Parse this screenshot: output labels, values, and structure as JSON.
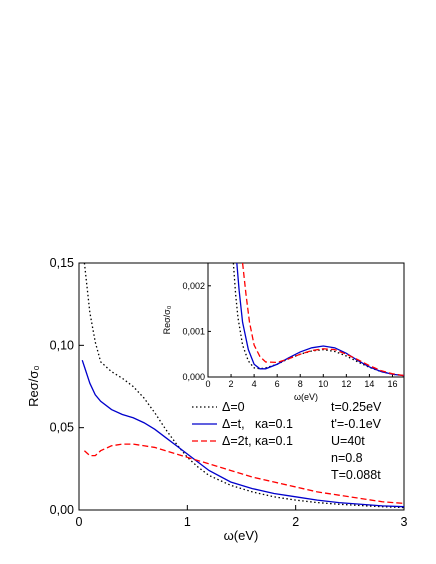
{
  "chart_data": [
    {
      "type": "line",
      "title": "",
      "xlabel": "ω(eV)",
      "ylabel": "Reσ/σ₀",
      "xlim": [
        0,
        3
      ],
      "ylim": [
        0,
        0.15
      ],
      "x_ticks": [
        "0",
        "1",
        "2",
        "3"
      ],
      "y_ticks": [
        "0,00",
        "0,05",
        "0,10",
        "0,15"
      ],
      "grid": false,
      "legend_position": "bottom-right",
      "series": [
        {
          "name": "Δ=0",
          "color": "#000000",
          "dash": "dotted",
          "x": [
            0.05,
            0.1,
            0.15,
            0.2,
            0.3,
            0.4,
            0.5,
            0.6,
            0.7,
            0.8,
            0.9,
            1.0,
            1.1,
            1.2,
            1.4,
            1.6,
            1.8,
            2.0,
            2.2,
            2.4,
            2.6,
            2.8,
            3.0
          ],
          "y": [
            0.15,
            0.12,
            0.102,
            0.09,
            0.084,
            0.08,
            0.075,
            0.068,
            0.059,
            0.049,
            0.04,
            0.032,
            0.026,
            0.021,
            0.015,
            0.011,
            0.008,
            0.006,
            0.0045,
            0.0035,
            0.0027,
            0.002,
            0.0015
          ]
        },
        {
          "name": "Δ=t,   κa=0.1",
          "color": "#0000cc",
          "dash": "solid",
          "x": [
            0.03,
            0.05,
            0.1,
            0.15,
            0.2,
            0.3,
            0.4,
            0.5,
            0.6,
            0.7,
            0.8,
            0.9,
            1.0,
            1.1,
            1.2,
            1.4,
            1.6,
            1.8,
            2.0,
            2.2,
            2.4,
            2.6,
            2.8,
            3.0
          ],
          "y": [
            0.091,
            0.087,
            0.077,
            0.07,
            0.066,
            0.061,
            0.058,
            0.056,
            0.053,
            0.049,
            0.044,
            0.039,
            0.034,
            0.029,
            0.024,
            0.017,
            0.013,
            0.01,
            0.008,
            0.006,
            0.0045,
            0.0035,
            0.0025,
            0.002
          ]
        },
        {
          "name": "Δ=2t, κa=0.1",
          "color": "#ff0000",
          "dash": "dashed",
          "x": [
            0.05,
            0.1,
            0.15,
            0.2,
            0.3,
            0.4,
            0.5,
            0.6,
            0.7,
            0.8,
            0.9,
            1.0,
            1.2,
            1.4,
            1.6,
            1.8,
            2.0,
            2.2,
            2.4,
            2.6,
            2.8,
            3.0
          ],
          "y": [
            0.036,
            0.033,
            0.033,
            0.036,
            0.039,
            0.04,
            0.04,
            0.039,
            0.038,
            0.036,
            0.034,
            0.032,
            0.028,
            0.024,
            0.02,
            0.017,
            0.014,
            0.011,
            0.009,
            0.007,
            0.005,
            0.004
          ]
        }
      ],
      "annotations": [
        "t=0.25eV",
        "t'=-0.1eV",
        "U=40t",
        "n=0.8",
        "T=0.088t"
      ]
    },
    {
      "type": "line",
      "title": "",
      "xlabel": "ω(eV)",
      "ylabel": "Reσ/σ₀",
      "xlim": [
        0,
        17
      ],
      "ylim": [
        0,
        0.0025
      ],
      "x_ticks": [
        "0",
        "2",
        "4",
        "6",
        "8",
        "10",
        "12",
        "14",
        "16"
      ],
      "y_ticks": [
        "0,000",
        "0,001",
        "0,002"
      ],
      "grid": false,
      "series": [
        {
          "name": "Δ=0",
          "color": "#000000",
          "dash": "dotted",
          "x": [
            2.2,
            2.4,
            2.6,
            3.0,
            3.5,
            4.0,
            4.5,
            5.0,
            6.0,
            7.0,
            8.0,
            9.0,
            10.0,
            11.0,
            12.0,
            13.0,
            14.0,
            15.0,
            16.0,
            17.0
          ],
          "y": [
            0.0025,
            0.0018,
            0.0013,
            0.0007,
            0.00035,
            0.0002,
            0.00018,
            0.0002,
            0.00028,
            0.0004,
            0.0005,
            0.00057,
            0.0006,
            0.00056,
            0.00046,
            0.00033,
            0.00021,
            0.00012,
            6e-05,
            3e-05
          ]
        },
        {
          "name": "Δ=t,   κa=0.1",
          "color": "#0000cc",
          "dash": "solid",
          "x": [
            2.5,
            2.7,
            3.0,
            3.5,
            4.0,
            4.5,
            5.0,
            6.0,
            7.0,
            8.0,
            9.0,
            10.0,
            11.0,
            12.0,
            13.0,
            14.0,
            15.0,
            16.0,
            17.0
          ],
          "y": [
            0.0025,
            0.0019,
            0.0012,
            0.0006,
            0.00028,
            0.00018,
            0.00018,
            0.00028,
            0.00042,
            0.00055,
            0.00064,
            0.00068,
            0.00064,
            0.00052,
            0.00036,
            0.00022,
            0.00012,
            6e-05,
            3e-05
          ]
        },
        {
          "name": "Δ=2t, κa=0.1",
          "color": "#ff0000",
          "dash": "dashed",
          "x": [
            3.0,
            3.3,
            3.6,
            4.0,
            4.5,
            5.0,
            6.0,
            7.0,
            8.0,
            9.0,
            10.0,
            11.0,
            12.0,
            13.0,
            14.0,
            15.0,
            16.0,
            17.0
          ],
          "y": [
            0.0025,
            0.0018,
            0.0012,
            0.0007,
            0.00045,
            0.00033,
            0.00032,
            0.0004,
            0.0005,
            0.00058,
            0.00062,
            0.0006,
            0.0005,
            0.00038,
            0.00025,
            0.00014,
            7e-05,
            3e-05
          ]
        }
      ]
    }
  ]
}
